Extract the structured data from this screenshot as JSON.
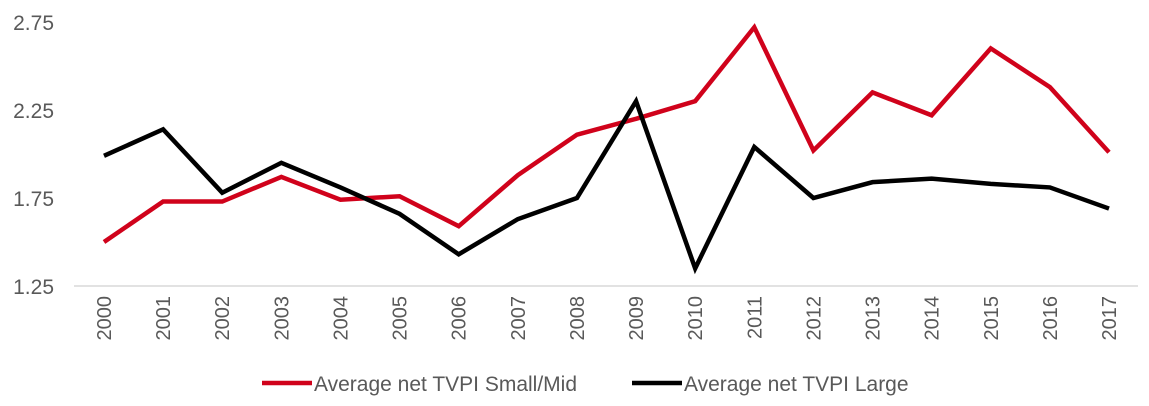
{
  "chart_data": {
    "type": "line",
    "title": "",
    "xlabel": "",
    "ylabel": "",
    "ylim": [
      1.25,
      2.75
    ],
    "yticks": [
      "1.25",
      "1.75",
      "2.25",
      "2.75"
    ],
    "grid": false,
    "legend_position": "bottom",
    "categories": [
      "2000",
      "2001",
      "2002",
      "2003",
      "2004",
      "2005",
      "2006",
      "2007",
      "2008",
      "2009",
      "2010",
      "2011",
      "2012",
      "2013",
      "2014",
      "2015",
      "2016",
      "2017"
    ],
    "series": [
      {
        "name": "Average net TVPI Small/Mid",
        "color": "#d0021b",
        "values": [
          1.5,
          1.73,
          1.73,
          1.87,
          1.74,
          1.76,
          1.59,
          1.88,
          2.11,
          2.2,
          2.3,
          2.72,
          2.02,
          2.35,
          2.22,
          2.6,
          2.38,
          2.01
        ]
      },
      {
        "name": "Average net TVPI Large",
        "color": "#000000",
        "values": [
          1.99,
          2.14,
          1.78,
          1.95,
          1.81,
          1.66,
          1.43,
          1.63,
          1.75,
          2.3,
          1.35,
          2.04,
          1.75,
          1.84,
          1.86,
          1.83,
          1.81,
          1.69
        ]
      }
    ]
  }
}
